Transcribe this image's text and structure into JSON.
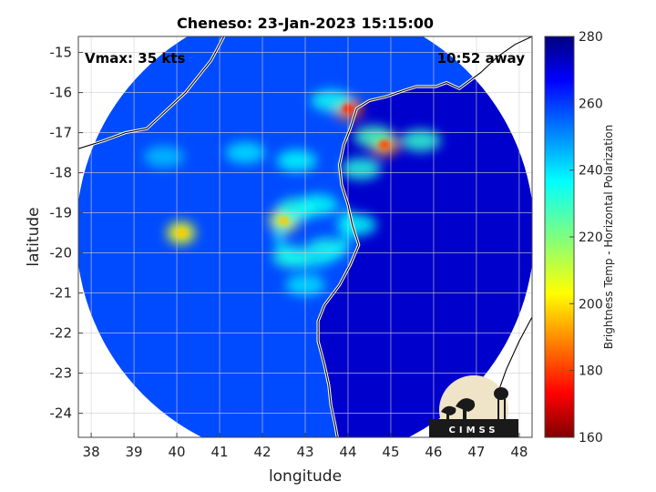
{
  "chart_data": {
    "type": "heatmap",
    "title": "Cheneso: 23-Jan-2023 15:15:00",
    "xlabel": "longitude",
    "ylabel": "latitude",
    "xlim": [
      37.7,
      48.3
    ],
    "ylim": [
      -24.6,
      -14.6
    ],
    "x_ticks": [
      38,
      39,
      40,
      41,
      42,
      43,
      44,
      45,
      46,
      47,
      48
    ],
    "y_ticks": [
      -15,
      -16,
      -17,
      -18,
      -19,
      -20,
      -21,
      -22,
      -23,
      -24
    ],
    "grid": true,
    "colorbar": {
      "label": "Brightness Temp - Horizontal Polarization",
      "min": 160,
      "max": 280,
      "ticks": [
        160,
        180,
        200,
        220,
        240,
        260,
        280
      ],
      "colormap": "jet"
    },
    "annotations": {
      "vmax": "Vmax: 35 kts",
      "time_away": "10:52 away"
    },
    "swath_center": [
      43.0,
      -19.5
    ],
    "swath_radius_deg": 5.35,
    "background_tb": 258,
    "features": [
      {
        "lon": 44.0,
        "lat": -16.4,
        "tb": 185
      },
      {
        "lon": 43.6,
        "lat": -16.2,
        "tb": 235
      },
      {
        "lon": 44.85,
        "lat": -17.3,
        "tb": 190
      },
      {
        "lon": 44.6,
        "lat": -17.1,
        "tb": 228
      },
      {
        "lon": 44.3,
        "lat": -17.9,
        "tb": 232
      },
      {
        "lon": 45.7,
        "lat": -17.2,
        "tb": 230
      },
      {
        "lon": 42.5,
        "lat": -19.2,
        "tb": 205
      },
      {
        "lon": 42.8,
        "lat": -18.9,
        "tb": 232
      },
      {
        "lon": 43.3,
        "lat": -18.8,
        "tb": 236
      },
      {
        "lon": 42.7,
        "lat": -20.1,
        "tb": 232
      },
      {
        "lon": 43.5,
        "lat": -19.9,
        "tb": 234
      },
      {
        "lon": 44.2,
        "lat": -19.3,
        "tb": 236
      },
      {
        "lon": 40.1,
        "lat": -19.5,
        "tb": 205
      },
      {
        "lon": 41.6,
        "lat": -17.5,
        "tb": 240
      },
      {
        "lon": 42.8,
        "lat": -17.7,
        "tb": 236
      },
      {
        "lon": 43.0,
        "lat": -20.8,
        "tb": 240
      },
      {
        "lon": 39.7,
        "lat": -17.6,
        "tb": 244
      }
    ],
    "land_tb": 272
  },
  "logo": {
    "text": "CIMSS"
  }
}
